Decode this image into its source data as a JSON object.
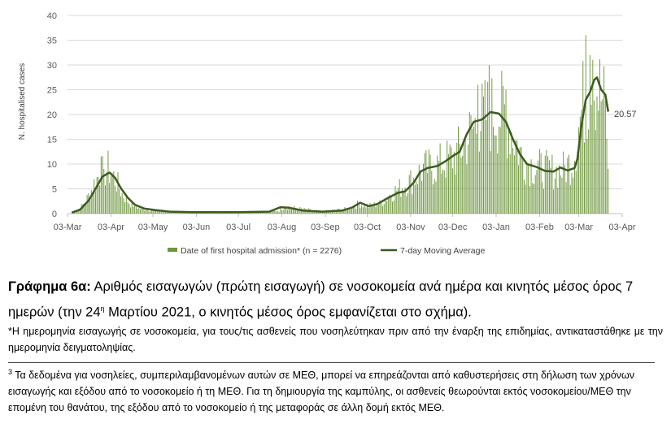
{
  "chart_data": {
    "type": "bar",
    "ylabel": "N. hospitalised cases",
    "ylim": [
      0,
      40
    ],
    "yticks": [
      "0",
      "5",
      "10",
      "15",
      "20",
      "25",
      "30",
      "35",
      "40"
    ],
    "xlim": [
      "2020-03-03",
      "2021-04-03"
    ],
    "xticks": [
      {
        "date": "2020-03-03",
        "label": "03-Mar"
      },
      {
        "date": "2020-04-03",
        "label": "03-Apr"
      },
      {
        "date": "2020-05-03",
        "label": "03-May"
      },
      {
        "date": "2020-06-03",
        "label": "03-Jun"
      },
      {
        "date": "2020-07-03",
        "label": "03-Jul"
      },
      {
        "date": "2020-08-03",
        "label": "03-Aug"
      },
      {
        "date": "2020-09-03",
        "label": "03-Sep"
      },
      {
        "date": "2020-10-03",
        "label": "03-Oct"
      },
      {
        "date": "2020-11-03",
        "label": "03-Nov"
      },
      {
        "date": "2020-12-03",
        "label": "03-Dec"
      },
      {
        "date": "2021-01-03",
        "label": "03-Jan"
      },
      {
        "date": "2021-02-03",
        "label": "03-Feb"
      },
      {
        "date": "2021-03-03",
        "label": "03-Mar"
      },
      {
        "date": "2021-04-03",
        "label": "03-Apr"
      }
    ],
    "series": [
      {
        "name": "Date of first hospital admission* (n = 2276)",
        "kind": "bar",
        "color": "#6d963c",
        "first_date": "2020-03-06",
        "last_date": "2021-03-24",
        "anchors": [
          [
            "2020-03-06",
            0
          ],
          [
            "2020-03-12",
            1
          ],
          [
            "2020-03-17",
            3
          ],
          [
            "2020-03-22",
            6
          ],
          [
            "2020-03-26",
            8
          ],
          [
            "2020-04-01",
            9
          ],
          [
            "2020-04-06",
            7
          ],
          [
            "2020-04-11",
            4
          ],
          [
            "2020-04-17",
            2
          ],
          [
            "2020-04-24",
            1
          ],
          [
            "2020-05-05",
            0.6
          ],
          [
            "2020-05-20",
            0.4
          ],
          [
            "2020-06-15",
            0.3
          ],
          [
            "2020-07-15",
            0.3
          ],
          [
            "2020-08-01",
            0.6
          ],
          [
            "2020-08-05",
            1.5
          ],
          [
            "2020-08-15",
            1
          ],
          [
            "2020-09-01",
            0.4
          ],
          [
            "2020-09-20",
            1
          ],
          [
            "2020-09-27",
            2
          ],
          [
            "2020-10-04",
            1.5
          ],
          [
            "2020-10-12",
            2
          ],
          [
            "2020-10-20",
            4
          ],
          [
            "2020-10-28",
            5.5
          ],
          [
            "2020-11-05",
            7
          ],
          [
            "2020-11-12",
            9
          ],
          [
            "2020-11-20",
            9.5
          ],
          [
            "2020-11-28",
            10.5
          ],
          [
            "2020-12-06",
            12
          ],
          [
            "2020-12-13",
            15
          ],
          [
            "2020-12-20",
            18
          ],
          [
            "2020-12-28",
            20
          ],
          [
            "2021-01-03",
            20.5
          ],
          [
            "2021-01-09",
            20
          ],
          [
            "2021-01-15",
            16
          ],
          [
            "2021-01-22",
            11
          ],
          [
            "2021-01-30",
            9.5
          ],
          [
            "2021-02-06",
            9
          ],
          [
            "2021-02-14",
            8.5
          ],
          [
            "2021-02-21",
            9
          ],
          [
            "2021-02-27",
            11
          ],
          [
            "2021-03-02",
            16
          ],
          [
            "2021-03-06",
            22
          ],
          [
            "2021-03-10",
            25
          ],
          [
            "2021-03-14",
            27
          ],
          [
            "2021-03-17",
            25
          ],
          [
            "2021-03-21",
            22
          ],
          [
            "2021-03-24",
            15
          ]
        ],
        "peaks": [
          [
            "2020-03-27",
            11.5
          ],
          [
            "2020-03-29",
            9
          ],
          [
            "2020-12-29",
            30
          ],
          [
            "2020-12-21",
            26
          ],
          [
            "2021-01-10",
            25
          ],
          [
            "2021-03-08",
            36
          ],
          [
            "2021-03-11",
            32
          ],
          [
            "2021-03-13",
            31
          ],
          [
            "2021-03-24",
            9
          ]
        ]
      },
      {
        "name": "7-day Moving Average",
        "kind": "line",
        "color": "#3d5a1f",
        "points": [
          [
            "2020-03-06",
            0.2
          ],
          [
            "2020-03-12",
            0.8
          ],
          [
            "2020-03-18",
            2.6
          ],
          [
            "2020-03-23",
            5
          ],
          [
            "2020-03-28",
            7.5
          ],
          [
            "2020-04-02",
            8.3
          ],
          [
            "2020-04-06",
            7.2
          ],
          [
            "2020-04-10",
            5.2
          ],
          [
            "2020-04-15",
            3.2
          ],
          [
            "2020-04-20",
            1.8
          ],
          [
            "2020-04-27",
            1
          ],
          [
            "2020-05-05",
            0.7
          ],
          [
            "2020-05-15",
            0.4
          ],
          [
            "2020-06-01",
            0.3
          ],
          [
            "2020-07-01",
            0.3
          ],
          [
            "2020-07-25",
            0.4
          ],
          [
            "2020-08-02",
            1.3
          ],
          [
            "2020-08-08",
            1.2
          ],
          [
            "2020-08-18",
            0.6
          ],
          [
            "2020-09-01",
            0.4
          ],
          [
            "2020-09-15",
            0.6
          ],
          [
            "2020-09-22",
            1.2
          ],
          [
            "2020-09-28",
            2.2
          ],
          [
            "2020-10-04",
            1.5
          ],
          [
            "2020-10-10",
            1.9
          ],
          [
            "2020-10-18",
            3.2
          ],
          [
            "2020-10-25",
            4.2
          ],
          [
            "2020-10-30",
            4.5
          ],
          [
            "2020-11-05",
            6.2
          ],
          [
            "2020-11-10",
            8.5
          ],
          [
            "2020-11-15",
            9.2
          ],
          [
            "2020-11-22",
            9.6
          ],
          [
            "2020-11-28",
            10.6
          ],
          [
            "2020-12-03",
            11.6
          ],
          [
            "2020-12-08",
            12.5
          ],
          [
            "2020-12-13",
            16
          ],
          [
            "2020-12-18",
            18.5
          ],
          [
            "2020-12-24",
            19
          ],
          [
            "2020-12-30",
            20.5
          ],
          [
            "2021-01-05",
            20.2
          ],
          [
            "2021-01-10",
            18.5
          ],
          [
            "2021-01-15",
            15
          ],
          [
            "2021-01-20",
            12
          ],
          [
            "2021-01-25",
            10
          ],
          [
            "2021-02-01",
            9.4
          ],
          [
            "2021-02-07",
            8.6
          ],
          [
            "2021-02-13",
            8.5
          ],
          [
            "2021-02-18",
            9.3
          ],
          [
            "2021-02-23",
            8.7
          ],
          [
            "2021-02-28",
            9.2
          ],
          [
            "2021-03-02",
            11
          ],
          [
            "2021-03-05",
            18
          ],
          [
            "2021-03-08",
            23
          ],
          [
            "2021-03-11",
            24.5
          ],
          [
            "2021-03-14",
            27
          ],
          [
            "2021-03-16",
            27.5
          ],
          [
            "2021-03-19",
            25
          ],
          [
            "2021-03-22",
            24
          ],
          [
            "2021-03-24",
            20.57
          ]
        ]
      }
    ],
    "end_label": "20.57",
    "legend_position": "bottom",
    "grid": "horizontal"
  },
  "caption": {
    "bold": "Γράφημα 6α:",
    "text": " Αριθμός εισαγωγών (πρώτη εισαγωγή) σε νοσοκομεία ανά ημέρα και κινητός μέσος όρος 7 ημερών (την 24",
    "sup": "η",
    "text2": " Μαρτίου 2021, ο κινητός μέσος όρος εμφανίζεται στο σχήμα)."
  },
  "note": "*Η ημερομηνία εισαγωγής σε νοσοκομεία, για τους/τις ασθενείς που νοσηλεύτηκαν πριν από την έναρξη της επιδημίας, αντικαταστάθηκε με την ημερομηνία δειγματοληψίας.",
  "footnote": {
    "sup": "3",
    "text": " Τα δεδομένα για νοσηλείες, συμπεριλαμβανομένων αυτών σε ΜΕΘ, μπορεί να επηρεάζονται από καθυστερήσεις στη δήλωση των χρόνων εισαγωγής και εξόδου από το νοσοκομείο ή τη ΜΕΘ. Για τη δημιουργία της καμπύλης, οι ασθενείς θεωρούνται εκτός νοσοκομείου/ΜΕΘ την επομένη του θανάτου, της εξόδου από το νοσοκομείο ή της μεταφοράς σε άλλη δομή εκτός ΜΕΘ."
  }
}
